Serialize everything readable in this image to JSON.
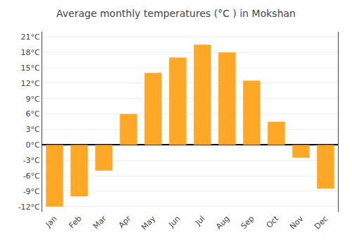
{
  "chart_data": {
    "type": "bar",
    "title": "Average monthly temperatures (°C ) in Mokshan",
    "categories": [
      "Jan",
      "Feb",
      "Mar",
      "Apr",
      "May",
      "Jun",
      "Jul",
      "Aug",
      "Sep",
      "Oct",
      "Nov",
      "Dec"
    ],
    "values": [
      -12,
      -10,
      -5,
      6,
      14,
      17,
      19.5,
      18,
      12.5,
      4.5,
      -2.5,
      -8.5
    ],
    "color": "#FFA726",
    "ylim": [
      -13,
      22
    ],
    "yticks": [
      {
        "value": -12,
        "label": "-12°C"
      },
      {
        "value": -9,
        "label": "-9°C"
      },
      {
        "value": -6,
        "label": "-6°C"
      },
      {
        "value": -3,
        "label": "-3°C"
      },
      {
        "value": 0,
        "label": "0°C"
      },
      {
        "value": 3,
        "label": "3°C"
      },
      {
        "value": 6,
        "label": "6°C"
      },
      {
        "value": 9,
        "label": "9°C"
      },
      {
        "value": 12,
        "label": "12°C"
      },
      {
        "value": 15,
        "label": "15°C"
      },
      {
        "value": 18,
        "label": "18°C"
      },
      {
        "value": 21,
        "label": "21°C"
      }
    ],
    "grid": true
  }
}
